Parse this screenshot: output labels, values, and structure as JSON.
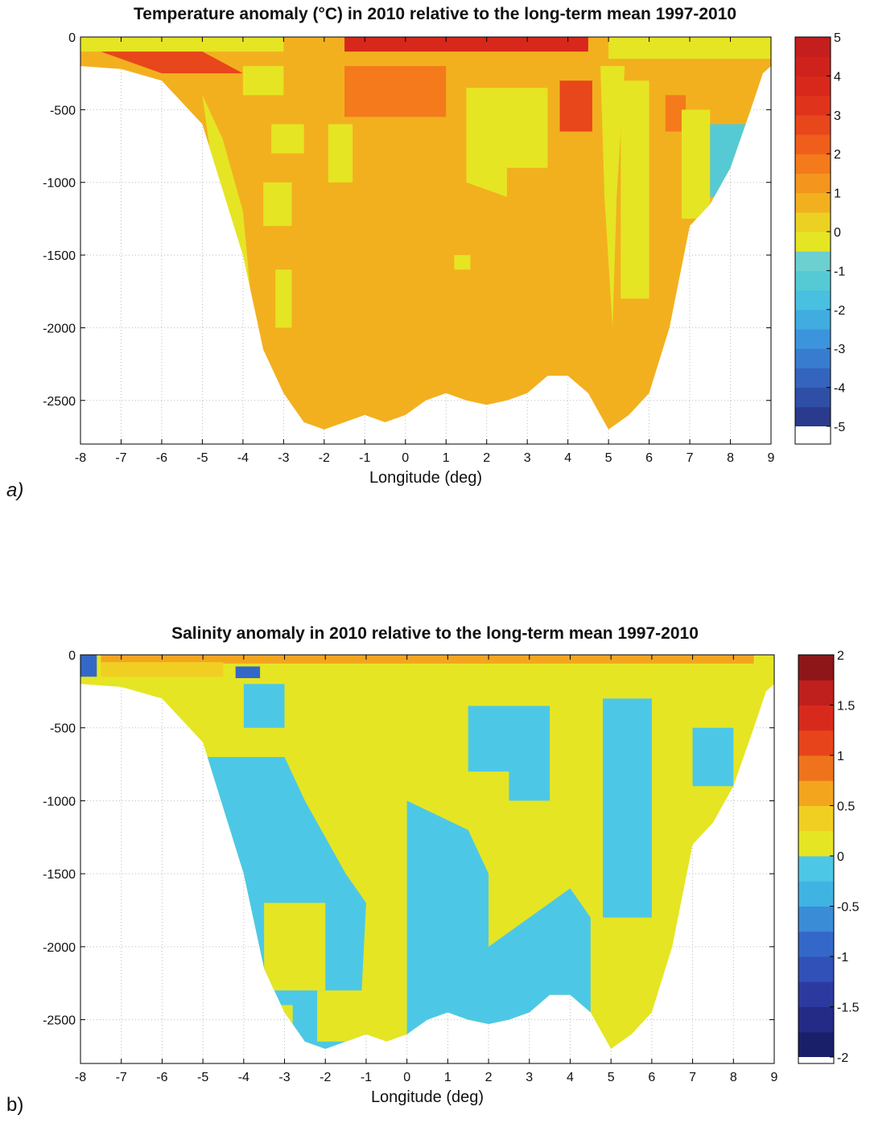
{
  "chart_data": [
    {
      "type": "heatmap",
      "panel_label": "a)",
      "title": "Temperature anomaly (°C) in 2010 relative to the long-term mean 1997-2010",
      "xlabel": "Longitude (deg)",
      "ylabel": "",
      "xlim": [
        -8,
        9
      ],
      "ylim": [
        -2800,
        0
      ],
      "xticks": [
        -8,
        -7,
        -6,
        -5,
        -4,
        -3,
        -2,
        -1,
        0,
        1,
        2,
        3,
        4,
        5,
        6,
        7,
        8,
        9
      ],
      "yticks": [
        0,
        -500,
        -1000,
        -1500,
        -2000,
        -2500
      ],
      "grid": true,
      "colorbar": {
        "min": -5,
        "max": 5,
        "ticks": [
          5,
          4,
          3,
          2,
          1,
          0,
          -1,
          -2,
          -3,
          -4,
          -5
        ],
        "colors": [
          "#2a3a8c",
          "#2f4ea6",
          "#3464bd",
          "#387ccf",
          "#3c94dc",
          "#41ace0",
          "#49c0df",
          "#56cad4",
          "#6ccfd0",
          "#e5e524",
          "#ecd122",
          "#f2b01f",
          "#f4961d",
          "#f47a1c",
          "#ef5e1b",
          "#e8461b",
          "#e0331b",
          "#d8281c",
          "#cf221c",
          "#c41e1e"
        ]
      },
      "bathymetry": [
        [
          -8,
          -200
        ],
        [
          -7,
          -220
        ],
        [
          -6,
          -300
        ],
        [
          -5,
          -600
        ],
        [
          -4,
          -1500
        ],
        [
          -3.5,
          -2150
        ],
        [
          -3,
          -2450
        ],
        [
          -2.5,
          -2650
        ],
        [
          -2,
          -2700
        ],
        [
          -1.5,
          -2650
        ],
        [
          -1,
          -2600
        ],
        [
          -0.5,
          -2650
        ],
        [
          0,
          -2600
        ],
        [
          0.5,
          -2500
        ],
        [
          1,
          -2450
        ],
        [
          1.5,
          -2500
        ],
        [
          2,
          -2530
        ],
        [
          2.5,
          -2500
        ],
        [
          3,
          -2450
        ],
        [
          3.5,
          -2330
        ],
        [
          4,
          -2330
        ],
        [
          4.5,
          -2450
        ],
        [
          5,
          -2700
        ],
        [
          5.5,
          -2600
        ],
        [
          6,
          -2450
        ],
        [
          6.5,
          -2000
        ],
        [
          7,
          -1300
        ],
        [
          7.5,
          -1150
        ],
        [
          8,
          -900
        ],
        [
          8.5,
          -500
        ],
        [
          8.8,
          -250
        ],
        [
          9,
          -200
        ]
      ],
      "regions": [
        {
          "level": 0.5,
          "polygon": [
            [
              -8,
              0
            ],
            [
              9,
              0
            ],
            [
              9,
              -2800
            ],
            [
              -8,
              -2800
            ]
          ]
        },
        {
          "level": -0.5,
          "polygon": [
            [
              -8,
              0
            ],
            [
              -3,
              0
            ],
            [
              -3,
              -100
            ],
            [
              -8,
              -100
            ]
          ]
        },
        {
          "level": -0.5,
          "polygon": [
            [
              5,
              0
            ],
            [
              9,
              0
            ],
            [
              9,
              -150
            ],
            [
              5,
              -150
            ]
          ]
        },
        {
          "level": 2.5,
          "polygon": [
            [
              -7.5,
              -100
            ],
            [
              -5,
              -100
            ],
            [
              -4,
              -250
            ],
            [
              -6,
              -250
            ]
          ]
        },
        {
          "level": 3.5,
          "polygon": [
            [
              -1.5,
              0
            ],
            [
              4.5,
              0
            ],
            [
              4.5,
              -100
            ],
            [
              -1.5,
              -100
            ]
          ]
        },
        {
          "level": 1.5,
          "polygon": [
            [
              -1.5,
              -200
            ],
            [
              1,
              -200
            ],
            [
              1,
              -550
            ],
            [
              -1.5,
              -550
            ]
          ]
        },
        {
          "level": 2.5,
          "polygon": [
            [
              3.8,
              -300
            ],
            [
              4.6,
              -300
            ],
            [
              4.6,
              -650
            ],
            [
              3.8,
              -650
            ]
          ]
        },
        {
          "level": 1.5,
          "polygon": [
            [
              6.4,
              -400
            ],
            [
              6.9,
              -400
            ],
            [
              6.9,
              -650
            ],
            [
              6.4,
              -650
            ]
          ]
        },
        {
          "level": -0.5,
          "polygon": [
            [
              -5,
              -400
            ],
            [
              -4.5,
              -700
            ],
            [
              -4,
              -1200
            ],
            [
              -3.8,
              -1800
            ],
            [
              -3.7,
              -2150
            ],
            [
              -4,
              -1600
            ],
            [
              -4.6,
              -1200
            ]
          ]
        },
        {
          "level": -0.5,
          "polygon": [
            [
              -4,
              -200
            ],
            [
              -3,
              -200
            ],
            [
              -3,
              -400
            ],
            [
              -4,
              -400
            ]
          ]
        },
        {
          "level": -0.5,
          "polygon": [
            [
              -3.3,
              -600
            ],
            [
              -2.5,
              -600
            ],
            [
              -2.5,
              -800
            ],
            [
              -3.3,
              -800
            ]
          ]
        },
        {
          "level": -0.5,
          "polygon": [
            [
              -3.5,
              -1000
            ],
            [
              -2.8,
              -1000
            ],
            [
              -2.8,
              -1300
            ],
            [
              -3.5,
              -1300
            ]
          ]
        },
        {
          "level": -0.5,
          "polygon": [
            [
              -3.2,
              -1600
            ],
            [
              -2.8,
              -1600
            ],
            [
              -2.8,
              -2000
            ],
            [
              -3.2,
              -2000
            ]
          ]
        },
        {
          "level": -0.5,
          "polygon": [
            [
              -1.9,
              -600
            ],
            [
              -1.3,
              -600
            ],
            [
              -1.3,
              -1000
            ],
            [
              -1.9,
              -1000
            ]
          ]
        },
        {
          "level": -0.5,
          "polygon": [
            [
              1.5,
              -350
            ],
            [
              3.5,
              -350
            ],
            [
              3.5,
              -900
            ],
            [
              2.5,
              -900
            ],
            [
              2.5,
              -1100
            ],
            [
              1.5,
              -1000
            ]
          ]
        },
        {
          "level": -0.5,
          "polygon": [
            [
              1.2,
              -1500
            ],
            [
              1.6,
              -1500
            ],
            [
              1.6,
              -1600
            ],
            [
              1.2,
              -1600
            ]
          ]
        },
        {
          "level": -0.5,
          "polygon": [
            [
              4.8,
              -200
            ],
            [
              5.4,
              -200
            ],
            [
              5.2,
              -1100
            ],
            [
              5.1,
              -2000
            ],
            [
              4.9,
              -1100
            ]
          ]
        },
        {
          "level": -0.5,
          "polygon": [
            [
              5.3,
              -300
            ],
            [
              6,
              -300
            ],
            [
              6,
              -1800
            ],
            [
              5.3,
              -1800
            ]
          ]
        },
        {
          "level": -0.5,
          "polygon": [
            [
              6.8,
              -500
            ],
            [
              7.5,
              -500
            ],
            [
              7.5,
              -1250
            ],
            [
              6.8,
              -1250
            ]
          ]
        },
        {
          "level": -1.5,
          "polygon": [
            [
              7.5,
              -600
            ],
            [
              8.5,
              -600
            ],
            [
              8.3,
              -1100
            ],
            [
              7.5,
              -1100
            ]
          ]
        }
      ]
    },
    {
      "type": "heatmap",
      "panel_label": "b)",
      "title": "Salinity anomaly in 2010 relative to the long-term mean 1997-2010",
      "xlabel": "Longitude (deg)",
      "ylabel": "",
      "xlim": [
        -8,
        9
      ],
      "ylim": [
        -2800,
        0
      ],
      "xticks": [
        -8,
        -7,
        -6,
        -5,
        -4,
        -3,
        -2,
        -1,
        0,
        1,
        2,
        3,
        4,
        5,
        6,
        7,
        8,
        9
      ],
      "yticks": [
        0,
        -500,
        -1000,
        -1500,
        -2000,
        -2500
      ],
      "grid": true,
      "colorbar": {
        "min": -2,
        "max": 2,
        "ticks": [
          2,
          1.5,
          1,
          0.5,
          0,
          -0.5,
          -1,
          -1.5,
          -2
        ],
        "colors": [
          "#1a1f6a",
          "#232b86",
          "#2c3aa0",
          "#3150b8",
          "#3468c8",
          "#3a8cd6",
          "#3fb4e3",
          "#4cc8e6",
          "#e5e524",
          "#f0cf22",
          "#f3a51e",
          "#ef731c",
          "#e8441b",
          "#d82a1c",
          "#bf1f1d",
          "#8e1618"
        ]
      },
      "bathymetry": [
        [
          -8,
          -200
        ],
        [
          -7,
          -220
        ],
        [
          -6,
          -300
        ],
        [
          -5,
          -600
        ],
        [
          -4,
          -1500
        ],
        [
          -3.5,
          -2150
        ],
        [
          -3,
          -2450
        ],
        [
          -2.5,
          -2650
        ],
        [
          -2,
          -2700
        ],
        [
          -1.5,
          -2650
        ],
        [
          -1,
          -2600
        ],
        [
          -0.5,
          -2650
        ],
        [
          0,
          -2600
        ],
        [
          0.5,
          -2500
        ],
        [
          1,
          -2450
        ],
        [
          1.5,
          -2500
        ],
        [
          2,
          -2530
        ],
        [
          2.5,
          -2500
        ],
        [
          3,
          -2450
        ],
        [
          3.5,
          -2330
        ],
        [
          4,
          -2330
        ],
        [
          4.5,
          -2450
        ],
        [
          5,
          -2700
        ],
        [
          5.5,
          -2600
        ],
        [
          6,
          -2450
        ],
        [
          6.5,
          -2000
        ],
        [
          7,
          -1300
        ],
        [
          7.5,
          -1150
        ],
        [
          8,
          -900
        ],
        [
          8.5,
          -500
        ],
        [
          8.8,
          -250
        ],
        [
          9,
          -200
        ]
      ],
      "regions": [
        {
          "level": 0.05,
          "polygon": [
            [
              -8,
              0
            ],
            [
              9,
              0
            ],
            [
              9,
              -2800
            ],
            [
              -8,
              -2800
            ]
          ]
        },
        {
          "level": -0.1,
          "polygon": [
            [
              -5,
              -700
            ],
            [
              -3,
              -700
            ],
            [
              -2.5,
              -1000
            ],
            [
              -1.5,
              -1500
            ],
            [
              -1,
              -1700
            ],
            [
              -1.2,
              -2800
            ],
            [
              -5,
              -2800
            ]
          ]
        },
        {
          "level": -0.1,
          "polygon": [
            [
              0,
              -1000
            ],
            [
              1.5,
              -1200
            ],
            [
              2,
              -1500
            ],
            [
              2,
              -2000
            ],
            [
              3,
              -1800
            ],
            [
              4,
              -1600
            ],
            [
              4.5,
              -1800
            ],
            [
              4.5,
              -2800
            ],
            [
              0,
              -2800
            ]
          ]
        },
        {
          "level": -0.1,
          "polygon": [
            [
              -4,
              -200
            ],
            [
              -3,
              -200
            ],
            [
              -3,
              -500
            ],
            [
              -4,
              -500
            ]
          ]
        },
        {
          "level": -0.1,
          "polygon": [
            [
              1.5,
              -350
            ],
            [
              3.5,
              -350
            ],
            [
              3.5,
              -1000
            ],
            [
              2.5,
              -1000
            ],
            [
              2.5,
              -800
            ],
            [
              1.5,
              -800
            ]
          ]
        },
        {
          "level": -0.1,
          "polygon": [
            [
              4.8,
              -300
            ],
            [
              6,
              -300
            ],
            [
              6,
              -1800
            ],
            [
              4.8,
              -1800
            ]
          ]
        },
        {
          "level": -0.1,
          "polygon": [
            [
              7,
              -500
            ],
            [
              8,
              -500
            ],
            [
              8,
              -900
            ],
            [
              7,
              -900
            ]
          ]
        },
        {
          "level": 0.05,
          "polygon": [
            [
              -3.5,
              -1700
            ],
            [
              -2,
              -1700
            ],
            [
              -2,
              -2300
            ],
            [
              -3.5,
              -2300
            ]
          ]
        },
        {
          "level": 0.05,
          "polygon": [
            [
              -2.2,
              -2300
            ],
            [
              -1,
              -2300
            ],
            [
              -1,
              -2650
            ],
            [
              -2.2,
              -2650
            ]
          ]
        },
        {
          "level": 0.05,
          "polygon": [
            [
              4.6,
              -1900
            ],
            [
              5.6,
              -1900
            ],
            [
              5.6,
              -2600
            ],
            [
              4.6,
              -2600
            ]
          ]
        },
        {
          "level": 0.05,
          "polygon": [
            [
              -4,
              -2400
            ],
            [
              -2.8,
              -2400
            ],
            [
              -2.8,
              -2600
            ],
            [
              -4,
              -2600
            ]
          ]
        },
        {
          "level": 0.7,
          "polygon": [
            [
              -7.5,
              0
            ],
            [
              8.5,
              0
            ],
            [
              8.5,
              -60
            ],
            [
              -7.5,
              -60
            ]
          ]
        },
        {
          "level": 0.4,
          "polygon": [
            [
              -7.5,
              -50
            ],
            [
              -4.5,
              -50
            ],
            [
              -4.5,
              -150
            ],
            [
              -7.5,
              -150
            ]
          ]
        },
        {
          "level": -0.9,
          "polygon": [
            [
              -8,
              0
            ],
            [
              -7.6,
              0
            ],
            [
              -7.6,
              -150
            ],
            [
              -8,
              -150
            ]
          ]
        },
        {
          "level": -0.9,
          "polygon": [
            [
              -4.2,
              -80
            ],
            [
              -3.6,
              -80
            ],
            [
              -3.6,
              -160
            ],
            [
              -4.2,
              -160
            ]
          ]
        }
      ]
    }
  ]
}
